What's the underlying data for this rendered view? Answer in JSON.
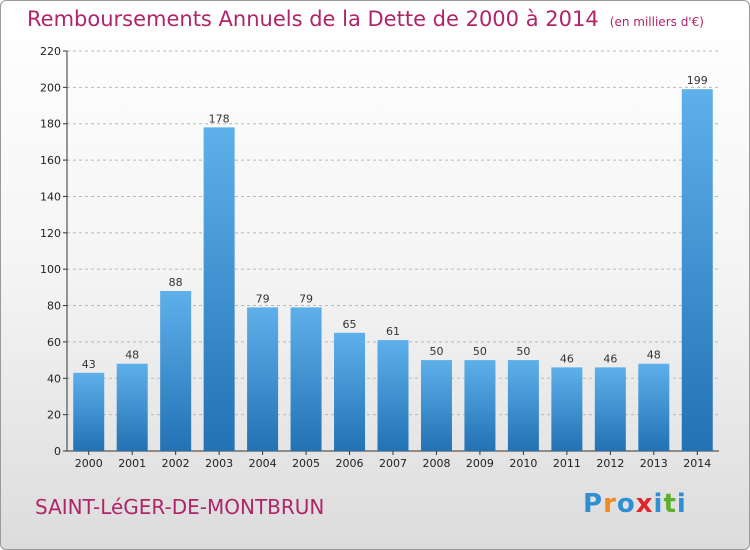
{
  "header": {
    "title": "Remboursements Annuels de la Dette de 2000 à 2014",
    "unit": "(en milliers d'€)"
  },
  "footer": {
    "commune": "SAINT-LéGER-DE-MONTBRUN",
    "logo_letters": [
      {
        "char": "P",
        "color": "#2f8fd2"
      },
      {
        "char": "r",
        "color": "#f08a1c"
      },
      {
        "char": "o",
        "color": "#2f8fd2"
      },
      {
        "char": "x",
        "color": "#e0262a"
      },
      {
        "char": "i",
        "color": "#2f8fd2"
      },
      {
        "char": "t",
        "color": "#5ab02c"
      },
      {
        "char": "i",
        "color": "#2f8fd2"
      }
    ]
  },
  "chart_data": {
    "type": "bar",
    "title": "Remboursements Annuels de la Dette de 2000 à 2014",
    "subtitle": "(en milliers d'€)",
    "categories": [
      "2000",
      "2001",
      "2002",
      "2003",
      "2004",
      "2005",
      "2006",
      "2007",
      "2008",
      "2009",
      "2010",
      "2011",
      "2012",
      "2013",
      "2014"
    ],
    "values": [
      43,
      48,
      88,
      178,
      79,
      79,
      65,
      61,
      50,
      50,
      50,
      46,
      46,
      48,
      199
    ],
    "ylim": [
      0,
      220
    ],
    "yticks": [
      0,
      20,
      40,
      60,
      80,
      100,
      120,
      140,
      160,
      180,
      200,
      220
    ],
    "grid": true,
    "bar_color_top": "#5eb0ea",
    "bar_color_bottom": "#2272b4"
  }
}
